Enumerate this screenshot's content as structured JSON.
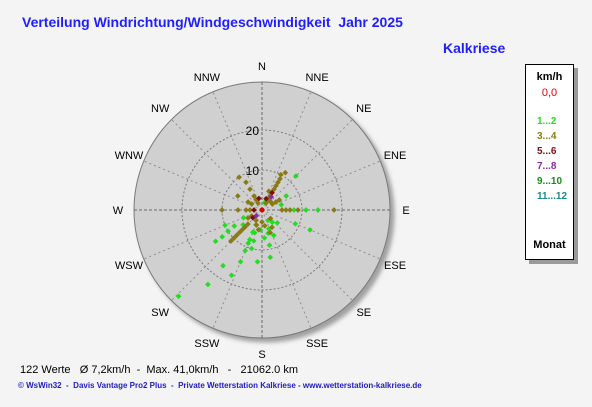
{
  "title": "Verteilung Windrichtung/Windgeschwindigkeit  Jahr 2025",
  "station": "Kalkriese",
  "legend": {
    "unit": "km/h",
    "calm_label": "0,0",
    "calm_color": "#e00000",
    "classes": [
      {
        "label": "1...2",
        "color": "#22dd22"
      },
      {
        "label": "3...4",
        "color": "#8a7a14"
      },
      {
        "label": "5...6",
        "color": "#7a1010"
      },
      {
        "label": "7...8",
        "color": "#8a2aa0"
      },
      {
        "label": "9...10",
        "color": "#1a8a1a"
      },
      {
        "label": "11...12",
        "color": "#1a8a8a"
      }
    ],
    "footer": "Monat"
  },
  "stats": {
    "count": "122 Werte",
    "avg": "Ø 7,2km/h",
    "max": "Max. 41,0km/h",
    "distance": "21062.0 km"
  },
  "credit": "© WsWin32  -  Davis Vantage Pro2 Plus  -  Private Wetterstation Kalkriese - www.wetterstation-kalkriese.de",
  "chart_data": {
    "type": "scatter",
    "subtype": "polar-wind-rose",
    "directions": [
      "N",
      "NNE",
      "NE",
      "ENE",
      "E",
      "ESE",
      "SE",
      "SSE",
      "S",
      "SSW",
      "SW",
      "WSW",
      "W",
      "WNW",
      "NW",
      "NNW"
    ],
    "radial_ticks": [
      10,
      20
    ],
    "rlim": [
      0,
      32
    ],
    "grid": true,
    "legend_position": "right",
    "series": [
      {
        "name": "1...2",
        "color": "#22dd22",
        "points": [
          [
            202.5,
            14
          ],
          [
            202.5,
            11
          ],
          [
            202.5,
            9
          ],
          [
            202.5,
            8
          ],
          [
            202.5,
            6
          ],
          [
            202.5,
            4
          ],
          [
            216,
            23
          ],
          [
            224,
            30
          ],
          [
            215,
            17
          ],
          [
            236,
            14
          ],
          [
            236,
            12
          ],
          [
            238,
            10
          ],
          [
            240,
            8
          ],
          [
            232,
            6
          ],
          [
            247.5,
            5
          ],
          [
            247.5,
            10
          ],
          [
            195,
            10
          ],
          [
            195,
            8
          ],
          [
            198,
            6
          ],
          [
            185,
            5
          ],
          [
            112.5,
            13
          ],
          [
            112.5,
            9
          ],
          [
            90,
            8
          ],
          [
            90,
            11
          ],
          [
            90,
            14
          ],
          [
            75,
            5
          ],
          [
            60,
            7
          ],
          [
            45,
            12
          ],
          [
            160,
            5
          ],
          [
            168,
            9
          ],
          [
            170,
            12
          ],
          [
            155,
            7
          ],
          [
            175,
            7
          ],
          [
            140,
            4
          ],
          [
            130,
            5
          ],
          [
            165,
            6
          ],
          [
            150,
            3
          ],
          [
            185,
            13
          ],
          [
            205,
            18
          ],
          [
            30,
            3
          ],
          [
            20,
            2
          ]
        ]
      },
      {
        "name": "3...4",
        "color": "#8a7a14",
        "points": [
          [
            30,
            9
          ],
          [
            30,
            8
          ],
          [
            30,
            7
          ],
          [
            30,
            6
          ],
          [
            30,
            5
          ],
          [
            30,
            4
          ],
          [
            30,
            3
          ],
          [
            30,
            2
          ],
          [
            28,
            10
          ],
          [
            32,
            11
          ],
          [
            20,
            5
          ],
          [
            330,
            8
          ],
          [
            330,
            6
          ],
          [
            330,
            4
          ],
          [
            330,
            3
          ],
          [
            330,
            2
          ],
          [
            325,
            10
          ],
          [
            300,
            7
          ],
          [
            300,
            4
          ],
          [
            300,
            3
          ],
          [
            270,
            10
          ],
          [
            270,
            6
          ],
          [
            270,
            4
          ],
          [
            270,
            3
          ],
          [
            240,
            3
          ],
          [
            240,
            4
          ],
          [
            225,
            5
          ],
          [
            225,
            6
          ],
          [
            225,
            7
          ],
          [
            225,
            8
          ],
          [
            225,
            9
          ],
          [
            225,
            10
          ],
          [
            225,
            11
          ],
          [
            210,
            3
          ],
          [
            200,
            4
          ],
          [
            90,
            5
          ],
          [
            90,
            6
          ],
          [
            90,
            7
          ],
          [
            90,
            9
          ],
          [
            90,
            18
          ],
          [
            60,
            5
          ],
          [
            60,
            4
          ],
          [
            60,
            3
          ],
          [
            45,
            3
          ],
          [
            180,
            3
          ],
          [
            190,
            5
          ],
          [
            160,
            6
          ],
          [
            170,
            4
          ],
          [
            135,
            3
          ],
          [
            150,
            5
          ]
        ]
      },
      {
        "name": "5...6",
        "color": "#7a1010",
        "points": [
          [
            30,
            5
          ],
          [
            20,
            3
          ],
          [
            345,
            3
          ],
          [
            230,
            3
          ],
          [
            270,
            2
          ]
        ]
      },
      {
        "name": "7...8",
        "color": "#8a2aa0",
        "points": [
          [
            35,
            4
          ],
          [
            225,
            2
          ]
        ]
      }
    ]
  }
}
